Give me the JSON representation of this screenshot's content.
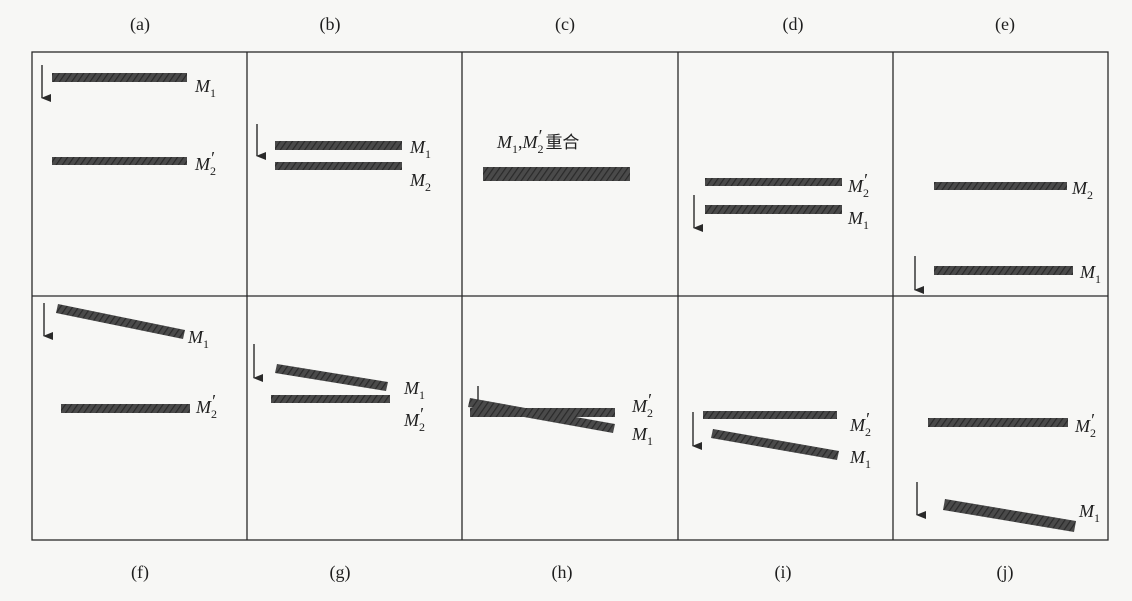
{
  "captions": [
    "(a)",
    "(b)",
    "(c)",
    "(d)",
    "(e)",
    "(f)",
    "(g)",
    "(h)",
    "(i)",
    "(j)"
  ],
  "mirror_labels": {
    "M1": {
      "letter": "M",
      "sub": "1"
    },
    "M2": {
      "letter": "M",
      "sub": "2"
    },
    "M2p": {
      "letter": "M",
      "prime": "′",
      "sub": "2"
    },
    "coincide": {
      "letter1": "M",
      "sub1": "1",
      "sep": ",",
      "letter2": "M",
      "prime2": "′",
      "sub2": "2",
      "text": "重合"
    }
  },
  "colors": {
    "mirror": "#3d3d3d",
    "line": "#2a2a2a",
    "text": "#1e1e1e"
  }
}
